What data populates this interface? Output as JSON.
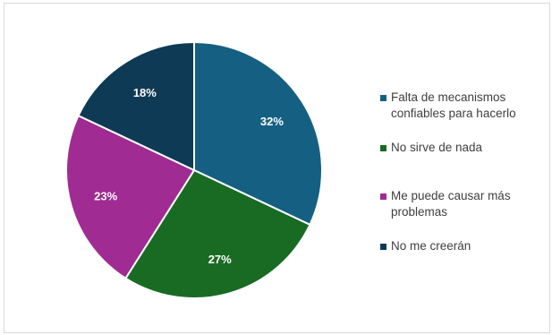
{
  "chart_data": {
    "type": "pie",
    "categories": [
      "Falta de mecanismos confiables para hacerlo",
      "No sirve de nada",
      "Me puede causar más problemas",
      "No me creerán"
    ],
    "values": [
      32,
      27,
      23,
      18
    ],
    "labels": [
      "32%",
      "27%",
      "23%",
      "18%"
    ],
    "colors": [
      "#156082",
      "#196B24",
      "#A02B93",
      "#0E3A55"
    ],
    "legend_position": "right"
  }
}
